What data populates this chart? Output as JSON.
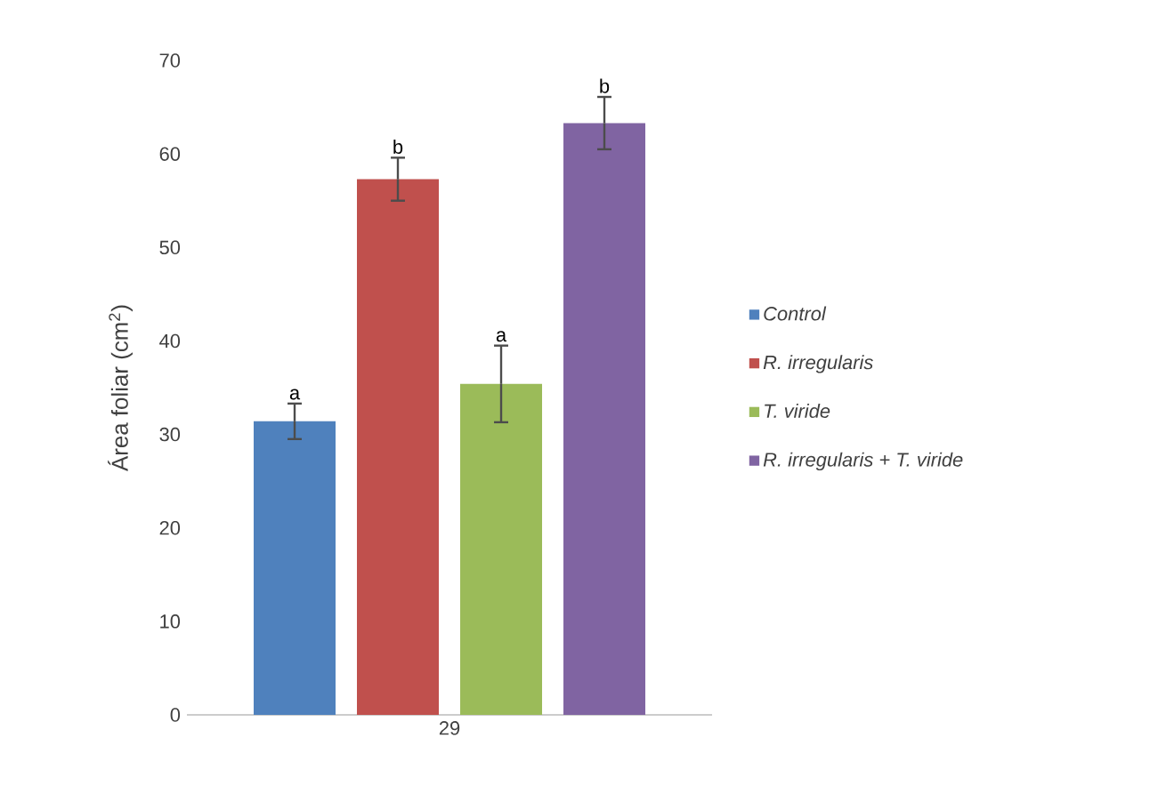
{
  "chart_data": {
    "type": "bar",
    "categories": [
      "29"
    ],
    "ylabel": "Área foliar (cm$^{2}$)",
    "ylim": [
      0,
      70
    ],
    "yticks": [
      0,
      10,
      20,
      30,
      40,
      50,
      60,
      70
    ],
    "legend": "right",
    "series": [
      {
        "name": "Control",
        "color": "#4f81bd",
        "values": [
          31.4
        ],
        "errors": [
          1.9
        ],
        "value_labels": [
          "a"
        ]
      },
      {
        "name": "R. irregularis",
        "color": "#c0504d",
        "values": [
          57.3
        ],
        "errors": [
          2.3
        ],
        "value_labels": [
          "b"
        ]
      },
      {
        "name": "T. viride",
        "color": "#9bbb59",
        "values": [
          35.4
        ],
        "errors": [
          4.1
        ],
        "value_labels": [
          "a"
        ]
      },
      {
        "name": "R. irregularis + T. viride",
        "color": "#8064a2",
        "values": [
          63.3
        ],
        "errors": [
          2.8
        ],
        "value_labels": [
          "b"
        ]
      }
    ]
  }
}
